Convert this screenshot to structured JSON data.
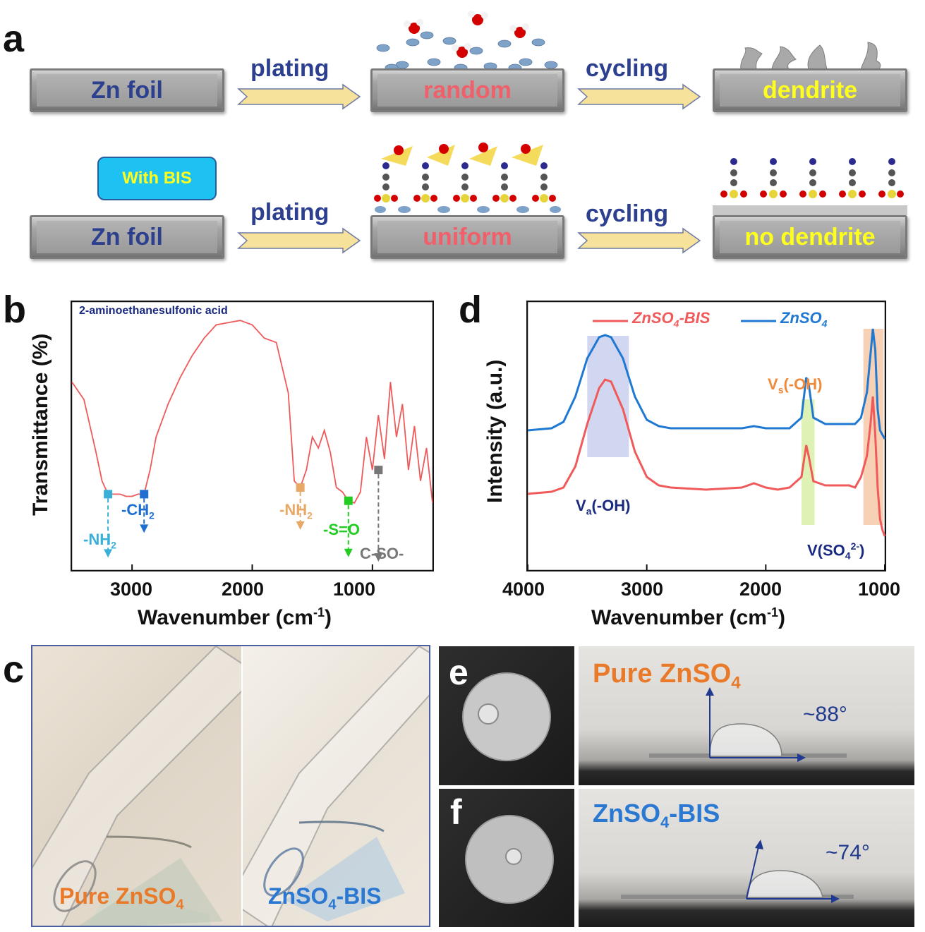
{
  "panel_a": {
    "letter": "a",
    "row1": {
      "slab1": "Zn foil",
      "arrow1": "plating",
      "slab2": "random",
      "arrow2": "cycling",
      "slab3": "dendrite"
    },
    "row2": {
      "badge": "With BIS",
      "slab1": "Zn foil",
      "arrow1": "plating",
      "slab2": "uniform",
      "arrow2": "cycling",
      "slab3": "no dendrite"
    },
    "colors": {
      "label_blue": "#2d3f8f",
      "random_red": "#f0606a",
      "dendrite_yellow": "#ffff1e",
      "badge_fill": "#1ec2f2",
      "arrow_fill": "#f6e29a"
    }
  },
  "panel_b": {
    "letter": "b",
    "inset_title": "2-aminoethanesulfonic acid",
    "ylabel": "Transmittance (%)",
    "xlabel_main": "Wavenumber (cm",
    "xlabel_sup": "-1",
    "xlabel_end": ")",
    "annotations": [
      {
        "text": "-NH",
        "sub": "2",
        "color": "#3ab0d8"
      },
      {
        "text": "-CH",
        "sub": "2",
        "color": "#1f6fd1"
      },
      {
        "text": "-NH",
        "sub": "2",
        "color": "#e8a866"
      },
      {
        "text": "-S=O",
        "sub": "",
        "color": "#22cc22"
      },
      {
        "text": "C-SO-",
        "sub": "",
        "color": "#777777"
      }
    ]
  },
  "panel_c": {
    "letter": "c",
    "left_label_main": "Pure ZnSO",
    "left_label_sub": "4",
    "right_label_main": "ZnSO",
    "right_label_sub": "4",
    "right_label_end": "-BIS"
  },
  "panel_d": {
    "letter": "d",
    "ylabel": "Intensity (a.u.)",
    "xlabel_main": "Wavenumber (cm",
    "xlabel_sup": "-1",
    "xlabel_end": ")",
    "legend": [
      {
        "main": "ZnSO",
        "sub": "4",
        "end": "-BIS",
        "color": "#f05a5a"
      },
      {
        "main": "ZnSO",
        "sub": "4",
        "end": "",
        "color": "#1f78d1"
      }
    ],
    "label_va": {
      "main": "V",
      "sub": "a",
      "end": "(-OH)"
    },
    "label_vs": {
      "main": "V",
      "sub": "s",
      "end": "(-OH)"
    },
    "label_vso4": {
      "main": "V(SO",
      "sub": "4",
      "sup": "2-",
      "end": ")"
    }
  },
  "panel_e": {
    "letter": "e",
    "title_main": "Pure ZnSO",
    "title_sub": "4",
    "angle": "~88°"
  },
  "panel_f": {
    "letter": "f",
    "title_main": "ZnSO",
    "title_sub": "4",
    "title_end": "-BIS",
    "angle": "~74°"
  },
  "chart_data": [
    {
      "type": "line",
      "panel": "b",
      "title": "2-aminoethanesulfonic acid",
      "xlabel": "Wavenumber (cm-1)",
      "ylabel": "Transmittance (%)",
      "xlim": [
        3500,
        500
      ],
      "x_ticks": [
        3000,
        2000,
        1000
      ],
      "series": [
        {
          "color": "#ee5a5a",
          "x": [
            3500,
            3400,
            3300,
            3250,
            3200,
            3100,
            3050,
            3000,
            2950,
            2900,
            2850,
            2800,
            2700,
            2600,
            2500,
            2400,
            2300,
            2200,
            2100,
            2000,
            1900,
            1800,
            1700,
            1650,
            1600,
            1550,
            1500,
            1450,
            1400,
            1350,
            1300,
            1250,
            1200,
            1150,
            1100,
            1050,
            1000,
            950,
            900,
            850,
            800,
            750,
            700,
            650,
            600,
            550,
            500
          ],
          "y": [
            0.7,
            0.62,
            0.38,
            0.25,
            0.19,
            0.19,
            0.18,
            0.18,
            0.19,
            0.19,
            0.3,
            0.45,
            0.6,
            0.72,
            0.82,
            0.9,
            0.96,
            0.97,
            0.98,
            0.96,
            0.9,
            0.88,
            0.65,
            0.25,
            0.22,
            0.3,
            0.45,
            0.4,
            0.48,
            0.38,
            0.22,
            0.2,
            0.16,
            0.15,
            0.2,
            0.45,
            0.3,
            0.55,
            0.35,
            0.7,
            0.45,
            0.6,
            0.3,
            0.5,
            0.25,
            0.4,
            0.15
          ]
        }
      ]
    },
    {
      "type": "line",
      "panel": "d",
      "xlabel": "Wavenumber (cm-1)",
      "ylabel": "Intensity (a.u.)",
      "xlim": [
        4000,
        1000
      ],
      "x_ticks": [
        4000,
        3000,
        2000,
        1000
      ],
      "series": [
        {
          "name": "ZnSO4-BIS",
          "color": "#f05a5a",
          "x": [
            4000,
            3800,
            3700,
            3600,
            3500,
            3400,
            3350,
            3300,
            3200,
            3100,
            3000,
            2900,
            2800,
            2500,
            2200,
            2100,
            2000,
            1900,
            1800,
            1700,
            1660,
            1640,
            1600,
            1500,
            1300,
            1250,
            1200,
            1150,
            1120,
            1100,
            1080,
            1060,
            1040,
            1020,
            1000
          ],
          "y": [
            0.22,
            0.23,
            0.25,
            0.35,
            0.55,
            0.72,
            0.76,
            0.75,
            0.62,
            0.42,
            0.3,
            0.26,
            0.25,
            0.24,
            0.25,
            0.27,
            0.25,
            0.24,
            0.25,
            0.3,
            0.45,
            0.4,
            0.28,
            0.26,
            0.26,
            0.25,
            0.3,
            0.4,
            0.55,
            0.68,
            0.5,
            0.25,
            0.1,
            0.05,
            0.02
          ]
        },
        {
          "name": "ZnSO4",
          "color": "#1f78d1",
          "x": [
            4000,
            3800,
            3700,
            3600,
            3500,
            3400,
            3350,
            3300,
            3200,
            3100,
            3000,
            2900,
            2800,
            2500,
            2200,
            2100,
            2000,
            1900,
            1800,
            1700,
            1660,
            1640,
            1600,
            1500,
            1300,
            1250,
            1200,
            1150,
            1120,
            1100,
            1080,
            1060,
            1040,
            1020,
            1000
          ],
          "y": [
            0.52,
            0.53,
            0.56,
            0.68,
            0.86,
            0.96,
            0.97,
            0.96,
            0.86,
            0.68,
            0.57,
            0.54,
            0.53,
            0.53,
            0.53,
            0.54,
            0.53,
            0.53,
            0.53,
            0.58,
            0.77,
            0.74,
            0.58,
            0.55,
            0.55,
            0.55,
            0.58,
            0.7,
            0.88,
            1.0,
            0.9,
            0.62,
            0.52,
            0.5,
            0.48
          ]
        }
      ],
      "shaded_bands": [
        {
          "from": 3500,
          "to": 3150,
          "color": "#c9d0ef"
        },
        {
          "from": 1700,
          "to": 1590,
          "color": "#d9f0a8"
        },
        {
          "from": 1180,
          "to": 1010,
          "color": "#f4c9a8"
        }
      ]
    }
  ]
}
